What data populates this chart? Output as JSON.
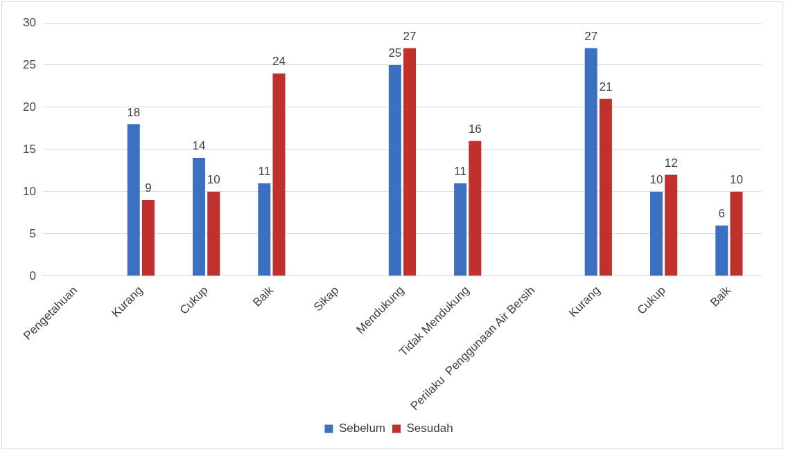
{
  "chart_data": {
    "type": "bar",
    "categories": [
      "Pengetahuan",
      "Kurang",
      "Cukup",
      "Baik",
      "Sikap",
      "Mendukung",
      "Tidak Mendukung",
      "Perilaku  Penggunaan Air Bersih",
      "Kurang",
      "Cukup",
      "Baik"
    ],
    "series": [
      {
        "name": "Sebelum",
        "color": "#3b6fc2",
        "values": [
          null,
          18,
          14,
          11,
          null,
          25,
          11,
          null,
          27,
          10,
          6
        ]
      },
      {
        "name": "Sesudah",
        "color": "#c0302d",
        "values": [
          null,
          9,
          10,
          24,
          null,
          27,
          16,
          null,
          21,
          12,
          10
        ]
      }
    ],
    "ylim": [
      0,
      30
    ],
    "yticks": [
      0,
      5,
      10,
      15,
      20,
      25,
      30
    ],
    "grid": "y",
    "legend": "bottom",
    "data_labels": true
  }
}
